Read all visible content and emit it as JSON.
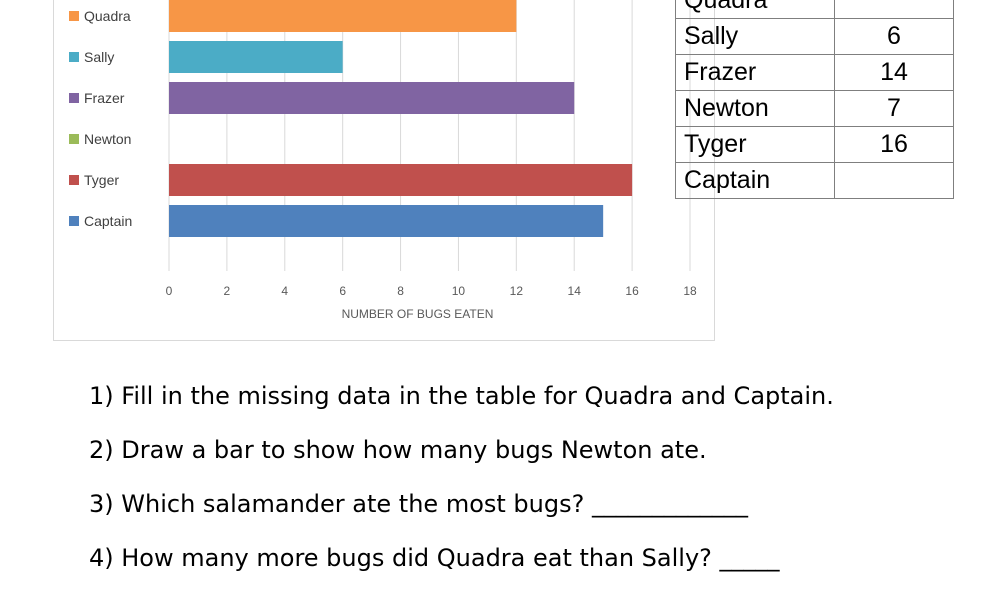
{
  "chart_data": {
    "type": "bar",
    "orientation": "horizontal",
    "categories": [
      "Quadra",
      "Sally",
      "Frazer",
      "Newton",
      "Tyger",
      "Captain"
    ],
    "values": [
      12,
      6,
      14,
      null,
      16,
      15
    ],
    "colors": [
      "#f79646",
      "#4bacc6",
      "#8064a2",
      "#9bbb59",
      "#c0504d",
      "#4f81bd"
    ],
    "xlabel": "NUMBER OF BUGS EATEN",
    "xlim": [
      0,
      18
    ],
    "xticks": [
      0,
      2,
      4,
      6,
      8,
      10,
      12,
      14,
      16,
      18
    ],
    "grid": true,
    "legend": "left"
  },
  "table": {
    "rows": [
      {
        "name": "Quadra",
        "value": ""
      },
      {
        "name": "Sally",
        "value": "6"
      },
      {
        "name": "Frazer",
        "value": "14"
      },
      {
        "name": "Newton",
        "value": "7"
      },
      {
        "name": "Tyger",
        "value": "16"
      },
      {
        "name": "Captain",
        "value": ""
      }
    ]
  },
  "questions": [
    "1) Fill in the missing data in the table for Quadra and Captain.",
    "2) Draw a bar to show how many bugs Newton ate.",
    "3) Which salamander ate the most bugs? _____________",
    "4) How many more bugs did Quadra eat than Sally? _____"
  ]
}
